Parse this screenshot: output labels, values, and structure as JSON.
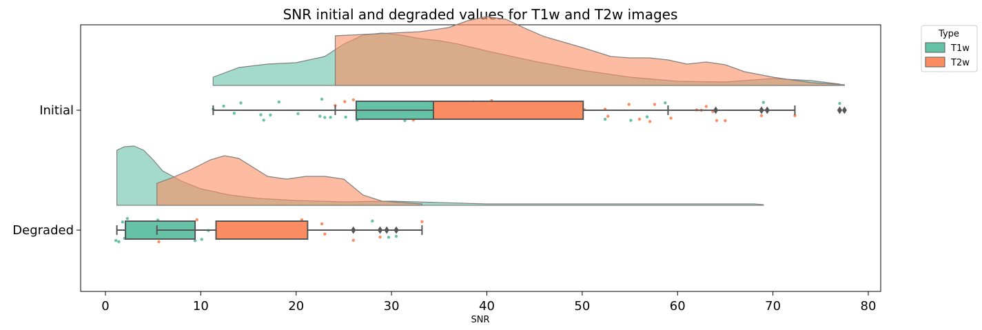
{
  "chart_data": {
    "type": "raincloud",
    "title": "SNR initial and degraded values for T1w and T2w images",
    "xlabel": "SNR",
    "ylabel": "",
    "xlim": [
      -2.6,
      81.3
    ],
    "xticks": [
      0,
      10,
      20,
      30,
      40,
      50,
      60,
      70,
      80
    ],
    "categories": [
      "Initial",
      "Degraded"
    ],
    "grid": false,
    "legend": {
      "title": "Type",
      "placement": "outside-top-right",
      "entries": [
        "T1w",
        "T2w"
      ]
    },
    "colors": {
      "T1w": "#66c2a5",
      "T2w": "#fc8d62",
      "box_line": "#555555",
      "cloud_edge": "#7f7f7f"
    },
    "series": [
      {
        "name": "T1w",
        "boxes": [
          {
            "category": "Initial",
            "whisker_low": 11.3,
            "q1": 26.3,
            "median": 34.4,
            "q3": 34.4,
            "whisker_high": 59.0,
            "outliers": [
              68.8,
              77.0
            ]
          },
          {
            "category": "Degraded",
            "whisker_low": 1.2,
            "q1": 2.1,
            "median": 2.1,
            "q3": 9.4,
            "whisker_high": 9.4,
            "outliers": []
          }
        ],
        "density": [
          {
            "category": "Initial",
            "x": [
              11.3,
              14,
              17,
              20,
              23,
              25,
              27,
              29,
              31,
              33,
              35,
              37,
              40,
              45,
              50,
              55,
              60,
              65,
              70,
              74,
              77
            ],
            "y": [
              0.12,
              0.26,
              0.31,
              0.33,
              0.42,
              0.6,
              0.73,
              0.76,
              0.73,
              0.68,
              0.65,
              0.6,
              0.5,
              0.35,
              0.22,
              0.12,
              0.06,
              0.05,
              0.1,
              0.07,
              0.02
            ]
          },
          {
            "category": "Degraded",
            "x": [
              1.2,
              2,
              3,
              4,
              5,
              6,
              8,
              10,
              13,
              16,
              20,
              25,
              30,
              40,
              50,
              60,
              68,
              69
            ],
            "y": [
              0.8,
              0.85,
              0.86,
              0.8,
              0.66,
              0.5,
              0.35,
              0.24,
              0.15,
              0.1,
              0.07,
              0.05,
              0.06,
              0.02,
              0.02,
              0.02,
              0.02,
              0.01
            ]
          }
        ],
        "points": [
          {
            "category": "Initial",
            "values": [
              11.3,
              12.4,
              13.5,
              14.2,
              16.3,
              16.6,
              17.3,
              18.2,
              20.2,
              22.5,
              22.7,
              23.0,
              23.6,
              25.2,
              26.4,
              27.9,
              29.6,
              30.9,
              31.4,
              33.2,
              34.5,
              36.2,
              38.6,
              42.2,
              43.7,
              45.2,
              48.2,
              52.4,
              55.1,
              56.8,
              58.7,
              69.0,
              77.0
            ]
          },
          {
            "category": "Degraded",
            "values": [
              1.1,
              1.4,
              1.8,
              2.0,
              2.3,
              2.8,
              3.3,
              4.1,
              4.8,
              5.5,
              6.0,
              7.1,
              8.2,
              9.1,
              9.4,
              10.1,
              10.8,
              28.0,
              29.7,
              30.5
            ]
          }
        ]
      },
      {
        "name": "T2w",
        "boxes": [
          {
            "category": "Initial",
            "whisker_low": 24.1,
            "q1": 34.4,
            "median": 34.4,
            "q3": 50.1,
            "whisker_high": 72.3,
            "outliers": [
              64.0,
              68.8,
              69.4,
              77.0,
              77.5
            ]
          },
          {
            "category": "Degraded",
            "whisker_low": 5.4,
            "q1": 11.6,
            "median": 11.6,
            "q3": 21.2,
            "whisker_high": 33.2,
            "outliers": [
              26.0,
              28.8,
              29.5,
              30.5
            ]
          }
        ],
        "density": [
          {
            "category": "Initial",
            "x": [
              24.1,
              27,
              30,
              33,
              36,
              38,
              40,
              42,
              44,
              46,
              48,
              50,
              53,
              55,
              57,
              59,
              61,
              63,
              65,
              67,
              70,
              74,
              77.5
            ],
            "y": [
              0.72,
              0.74,
              0.76,
              0.78,
              0.84,
              0.94,
              1.0,
              0.96,
              0.83,
              0.71,
              0.63,
              0.55,
              0.42,
              0.4,
              0.4,
              0.37,
              0.31,
              0.34,
              0.3,
              0.2,
              0.12,
              0.04,
              0.01
            ]
          },
          {
            "category": "Degraded",
            "x": [
              5.4,
              7,
              9,
              11,
              12.5,
              14,
              15.5,
              17,
              19,
              21,
              23,
              25,
              27,
              29,
              31,
              33.2
            ],
            "y": [
              0.32,
              0.4,
              0.52,
              0.66,
              0.72,
              0.68,
              0.55,
              0.42,
              0.38,
              0.42,
              0.42,
              0.38,
              0.15,
              0.06,
              0.04,
              0.02
            ]
          }
        ],
        "points": [
          {
            "category": "Initial",
            "values": [
              24.1,
              25.1,
              26.0,
              27.5,
              28.3,
              29.4,
              30.9,
              32.3,
              34.5,
              35.1,
              35.8,
              37.0,
              38.2,
              39.1,
              40.3,
              40.5,
              40.9,
              41.3,
              43.3,
              45.3,
              48.9,
              50.2,
              52.4,
              52.7,
              54.9,
              56.0,
              57.1,
              57.6,
              59.3,
              62.0,
              62.5,
              63.0,
              63.7,
              64.1,
              65.0,
              68.8,
              72.3
            ]
          },
          {
            "category": "Degraded",
            "values": [
              5.6,
              7.3,
              9.6,
              11.8,
              12.9,
              13.8,
              14.2,
              17.2,
              20.6,
              22.7,
              23.0,
              26.0,
              28.8,
              29.5,
              30.5,
              33.2
            ]
          }
        ]
      }
    ]
  }
}
